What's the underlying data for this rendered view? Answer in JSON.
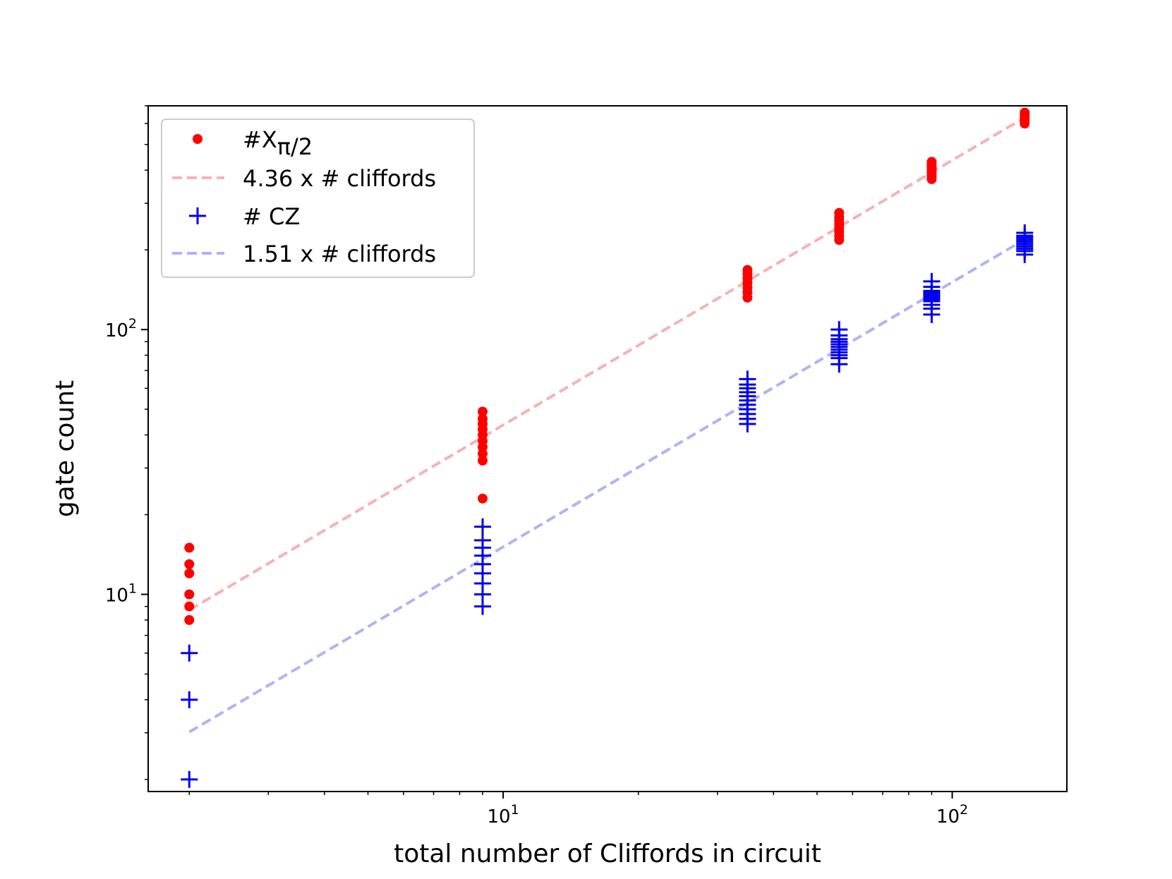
{
  "chart_data": {
    "type": "scatter",
    "xscale": "log",
    "yscale": "log",
    "xlim": [
      1.62,
      180
    ],
    "ylim": [
      1.8,
      700
    ],
    "xlabel": "total number of Cliffords in circuit",
    "ylabel": "gate count",
    "xticks": [
      {
        "value": 10,
        "base": "10",
        "exp": "1"
      },
      {
        "value": 100,
        "base": "10",
        "exp": "2"
      }
    ],
    "yticks": [
      {
        "value": 10,
        "base": "10",
        "exp": "1"
      },
      {
        "value": 100,
        "base": "10",
        "exp": "2"
      }
    ],
    "legend_position": "top-left",
    "colors": {
      "xpi2": "#ff0000",
      "xpi2_fit": "#f7b2b2",
      "cz": "#0000ee",
      "cz_fit": "#b2b2f7"
    },
    "series": [
      {
        "name": "#Xπ/2",
        "legend_main": "#X",
        "legend_sub": "π/2",
        "kind": "dot",
        "color": "#ff0000",
        "points": [
          [
            2,
            8
          ],
          [
            2,
            9
          ],
          [
            2,
            10
          ],
          [
            2,
            12
          ],
          [
            2,
            13
          ],
          [
            2,
            15
          ],
          [
            9,
            23
          ],
          [
            9,
            32
          ],
          [
            9,
            34
          ],
          [
            9,
            36
          ],
          [
            9,
            38
          ],
          [
            9,
            40
          ],
          [
            9,
            42
          ],
          [
            9,
            44
          ],
          [
            9,
            46
          ],
          [
            9,
            49
          ],
          [
            35,
            132
          ],
          [
            35,
            138
          ],
          [
            35,
            144
          ],
          [
            35,
            150
          ],
          [
            35,
            156
          ],
          [
            35,
            162
          ],
          [
            35,
            168
          ],
          [
            56,
            218
          ],
          [
            56,
            226
          ],
          [
            56,
            234
          ],
          [
            56,
            242
          ],
          [
            56,
            250
          ],
          [
            56,
            258
          ],
          [
            56,
            266
          ],
          [
            56,
            276
          ],
          [
            90,
            370
          ],
          [
            90,
            380
          ],
          [
            90,
            390
          ],
          [
            90,
            400
          ],
          [
            90,
            410
          ],
          [
            90,
            420
          ],
          [
            90,
            430
          ],
          [
            145,
            600
          ],
          [
            145,
            612
          ],
          [
            145,
            624
          ],
          [
            145,
            636
          ],
          [
            145,
            648
          ],
          [
            145,
            660
          ]
        ]
      },
      {
        "name": "4.36 x # cliffords",
        "kind": "fit",
        "color": "#f7b2b2",
        "slope": 4.36,
        "x_range": [
          2,
          145
        ]
      },
      {
        "name": "# CZ",
        "kind": "plus",
        "color": "#0000ee",
        "points": [
          [
            2,
            2
          ],
          [
            2,
            4
          ],
          [
            2,
            6
          ],
          [
            9,
            9
          ],
          [
            9,
            10
          ],
          [
            9,
            11
          ],
          [
            9,
            12
          ],
          [
            9,
            13
          ],
          [
            9,
            14
          ],
          [
            9,
            15
          ],
          [
            9,
            16
          ],
          [
            9,
            18
          ],
          [
            35,
            44
          ],
          [
            35,
            46
          ],
          [
            35,
            48
          ],
          [
            35,
            50
          ],
          [
            35,
            52
          ],
          [
            35,
            54
          ],
          [
            35,
            56
          ],
          [
            35,
            58
          ],
          [
            35,
            60
          ],
          [
            35,
            62
          ],
          [
            35,
            65
          ],
          [
            56,
            74
          ],
          [
            56,
            78
          ],
          [
            56,
            80
          ],
          [
            56,
            82
          ],
          [
            56,
            84
          ],
          [
            56,
            86
          ],
          [
            56,
            88
          ],
          [
            56,
            90
          ],
          [
            56,
            92
          ],
          [
            56,
            95
          ],
          [
            56,
            100
          ],
          [
            90,
            114
          ],
          [
            90,
            120
          ],
          [
            90,
            124
          ],
          [
            90,
            128
          ],
          [
            90,
            130
          ],
          [
            90,
            132
          ],
          [
            90,
            134
          ],
          [
            90,
            136
          ],
          [
            90,
            138
          ],
          [
            90,
            140
          ],
          [
            90,
            145
          ],
          [
            90,
            152
          ],
          [
            145,
            192
          ],
          [
            145,
            198
          ],
          [
            145,
            202
          ],
          [
            145,
            206
          ],
          [
            145,
            210
          ],
          [
            145,
            214
          ],
          [
            145,
            218
          ],
          [
            145,
            222
          ],
          [
            145,
            226
          ],
          [
            145,
            232
          ]
        ]
      },
      {
        "name": "1.51 x # cliffords",
        "kind": "fit",
        "color": "#b2b2f7",
        "slope": 1.51,
        "x_range": [
          2,
          145
        ]
      }
    ]
  }
}
